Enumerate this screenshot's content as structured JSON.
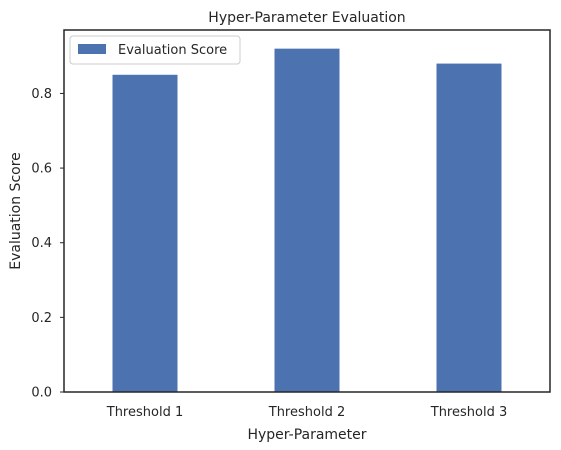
{
  "chart_data": {
    "type": "bar",
    "title": "Hyper-Parameter Evaluation",
    "xlabel": "Hyper-Parameter",
    "ylabel": "Evaluation Score",
    "categories": [
      "Threshold 1",
      "Threshold 2",
      "Threshold 3"
    ],
    "series": [
      {
        "name": "Evaluation Score",
        "values": [
          0.85,
          0.92,
          0.88
        ],
        "color": "#4c72b0"
      }
    ],
    "ylim": [
      0,
      0.97
    ],
    "yticks": [
      0.0,
      0.2,
      0.4,
      0.6,
      0.8
    ],
    "ytick_labels": [
      "0.0",
      "0.2",
      "0.4",
      "0.6",
      "0.8"
    ],
    "grid": false,
    "legend_position": "top-left"
  }
}
